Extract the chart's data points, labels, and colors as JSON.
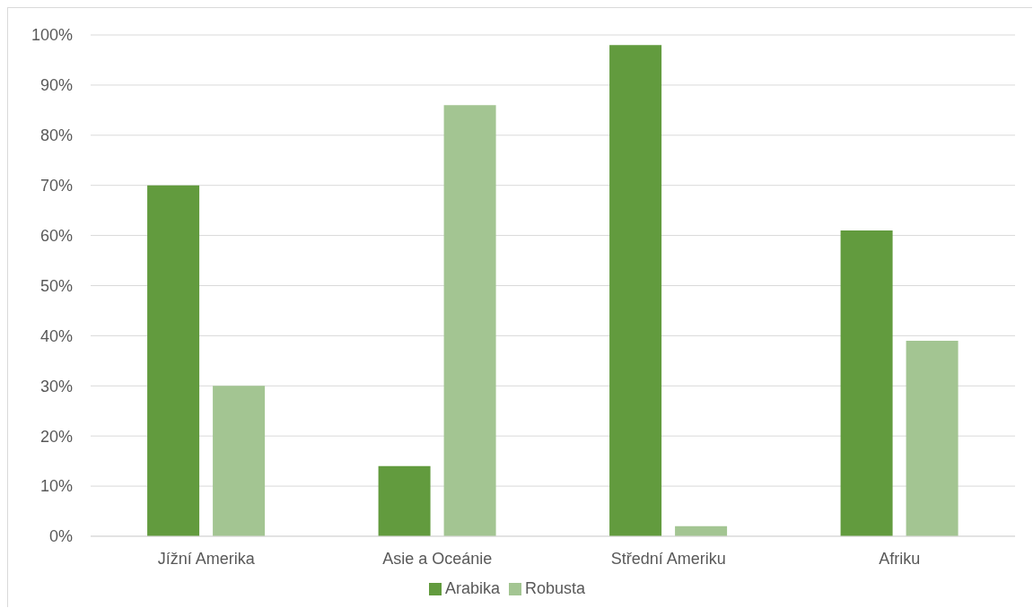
{
  "chart_data": {
    "type": "bar",
    "categories": [
      "Jížní Amerika",
      "Asie a Oceánie",
      "Střední Ameriku",
      "Afriku"
    ],
    "series": [
      {
        "name": "Arabika",
        "color": "#629b3e",
        "values": [
          70,
          14,
          98,
          61
        ]
      },
      {
        "name": "Robusta",
        "color": "#a3c592",
        "values": [
          30,
          86,
          2,
          39
        ]
      }
    ],
    "ylim": [
      0,
      100
    ],
    "yticks": [
      {
        "value": 0,
        "label": "0%"
      },
      {
        "value": 10,
        "label": "10%"
      },
      {
        "value": 20,
        "label": "20%"
      },
      {
        "value": 30,
        "label": "30%"
      },
      {
        "value": 40,
        "label": "40%"
      },
      {
        "value": 50,
        "label": "50%"
      },
      {
        "value": 60,
        "label": "60%"
      },
      {
        "value": 70,
        "label": "70%"
      },
      {
        "value": 80,
        "label": "80%"
      },
      {
        "value": 90,
        "label": "90%"
      },
      {
        "value": 100,
        "label": "100%"
      }
    ],
    "grid": "y",
    "legend": "bottom"
  }
}
